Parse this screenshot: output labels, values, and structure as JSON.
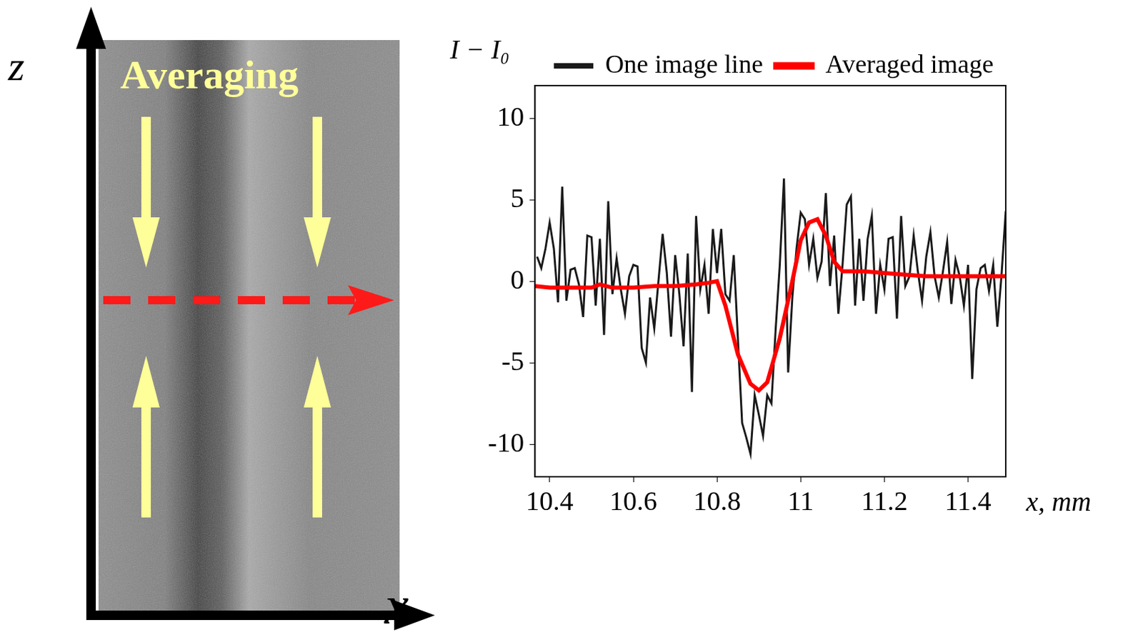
{
  "image_panel": {
    "label": "Averaging",
    "vertical_axis": "z",
    "horizontal_axis": "x"
  },
  "chart_data": {
    "type": "line",
    "x_label": "x, mm",
    "y_label": "I − I₀",
    "xlim": [
      10.365,
      11.49
    ],
    "xticks": [
      10.4,
      10.6,
      10.8,
      11,
      11.2,
      11.4
    ],
    "ylim": [
      -12,
      12
    ],
    "yticks": [
      -10,
      -5,
      0,
      5,
      10
    ],
    "grid": false,
    "legend": "top",
    "series": [
      {
        "name": "One image line",
        "color": "#1a1a1a",
        "x": [
          10.37,
          10.38,
          10.39,
          10.4,
          10.41,
          10.42,
          10.43,
          10.44,
          10.45,
          10.46,
          10.47,
          10.48,
          10.49,
          10.5,
          10.51,
          10.52,
          10.53,
          10.54,
          10.55,
          10.56,
          10.57,
          10.58,
          10.59,
          10.6,
          10.61,
          10.62,
          10.63,
          10.64,
          10.65,
          10.66,
          10.67,
          10.68,
          10.69,
          10.7,
          10.71,
          10.72,
          10.73,
          10.74,
          10.75,
          10.76,
          10.77,
          10.78,
          10.79,
          10.8,
          10.81,
          10.82,
          10.83,
          10.84,
          10.85,
          10.86,
          10.87,
          10.88,
          10.89,
          10.9,
          10.91,
          10.92,
          10.93,
          10.94,
          10.95,
          10.96,
          10.97,
          10.98,
          10.99,
          11,
          11.01,
          11.02,
          11.03,
          11.04,
          11.05,
          11.06,
          11.07,
          11.08,
          11.09,
          11.1,
          11.11,
          11.12,
          11.13,
          11.14,
          11.15,
          11.16,
          11.17,
          11.18,
          11.19,
          11.2,
          11.21,
          11.22,
          11.23,
          11.24,
          11.25,
          11.26,
          11.27,
          11.28,
          11.29,
          11.3,
          11.31,
          11.32,
          11.33,
          11.34,
          11.35,
          11.36,
          11.37,
          11.38,
          11.39,
          11.4,
          11.41,
          11.42,
          11.43,
          11.44,
          11.45,
          11.46,
          11.47,
          11.48,
          11.49
        ],
        "values": [
          1.5,
          0.8,
          2.0,
          3.6,
          2.0,
          -1.3,
          5.8,
          -1.2,
          0.7,
          0.8,
          -0.2,
          -2.2,
          2.8,
          2.7,
          -1.5,
          2.6,
          -3.3,
          4.9,
          -0.8,
          1.4,
          -0.5,
          -2.0,
          0.3,
          1.0,
          0.9,
          -4.1,
          -5.0,
          -1.0,
          -2.9,
          0.0,
          2.9,
          0.5,
          -3.4,
          1.6,
          -0.8,
          -4.0,
          1.7,
          -6.8,
          4.0,
          -0.5,
          1.0,
          -2.0,
          3.2,
          0.5,
          3.2,
          -0.8,
          -1.2,
          1.6,
          -3.6,
          -8.7,
          -9.6,
          -10.6,
          -7.0,
          -8.2,
          -9.5,
          -7.0,
          -7.5,
          -3.0,
          1.0,
          6.3,
          -5.6,
          -1.0,
          2.0,
          4.2,
          3.8,
          1.0,
          2.6,
          0.2,
          1.2,
          5.4,
          -0.3,
          2.8,
          -2.0,
          1.0,
          4.7,
          5.2,
          -1.5,
          2.6,
          -1.2,
          2.6,
          4.0,
          -2.0,
          1.0,
          -0.5,
          2.6,
          2.7,
          -2.3,
          4.0,
          -0.3,
          0.3,
          2.8,
          0.6,
          -1.2,
          1.5,
          3.0,
          0.3,
          -1.0,
          0.6,
          2.4,
          -1.4,
          1.3,
          0.3,
          -1.5,
          1.0,
          -6.0,
          -0.5,
          0.8,
          1.0,
          -0.6,
          1.0,
          -2.8,
          0.4,
          4.3
        ]
      },
      {
        "name": "Averaged image",
        "color": "#ff0000",
        "x": [
          10.365,
          10.4,
          10.45,
          10.5,
          10.52,
          10.55,
          10.6,
          10.65,
          10.7,
          10.75,
          10.78,
          10.8,
          10.82,
          10.85,
          10.88,
          10.9,
          10.92,
          10.95,
          10.98,
          11,
          11.02,
          11.04,
          11.06,
          11.08,
          11.1,
          11.15,
          11.2,
          11.25,
          11.3,
          11.35,
          11.4,
          11.45,
          11.49
        ],
        "values": [
          -0.3,
          -0.4,
          -0.4,
          -0.4,
          -0.2,
          -0.4,
          -0.4,
          -0.3,
          -0.3,
          -0.2,
          -0.1,
          0.0,
          -1.5,
          -4.5,
          -6.3,
          -6.7,
          -6.2,
          -3.5,
          0.0,
          2.5,
          3.6,
          3.8,
          2.8,
          1.2,
          0.6,
          0.6,
          0.5,
          0.4,
          0.3,
          0.3,
          0.3,
          0.3,
          0.3
        ]
      }
    ]
  }
}
